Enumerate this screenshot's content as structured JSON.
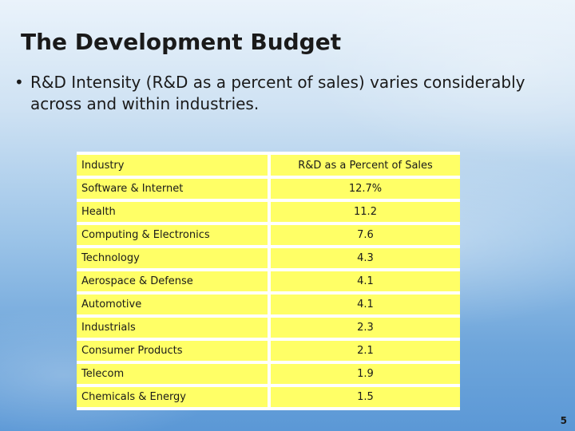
{
  "slide": {
    "title": "The Development Budget",
    "bullet": "R&D Intensity  (R&D as a percent of sales) varies considerably across and within industries.",
    "bullet_symbol": "•",
    "number": "5"
  },
  "table": {
    "headers": [
      "Industry",
      "R&D as a Percent of Sales"
    ],
    "rows": [
      [
        "Software & Internet",
        "12.7%"
      ],
      [
        "Health",
        "11.2"
      ],
      [
        "Computing & Electronics",
        "7.6"
      ],
      [
        "Technology",
        "4.3"
      ],
      [
        "Aerospace & Defense",
        "4.1"
      ],
      [
        "Automotive",
        "4.1"
      ],
      [
        "Industrials",
        "2.3"
      ],
      [
        "Consumer Products",
        "2.1"
      ],
      [
        "Telecom",
        "1.9"
      ],
      [
        "Chemicals & Energy",
        "1.5"
      ]
    ]
  },
  "colors": {
    "cell_fill": "#ffff66",
    "text": "#1a1a1a",
    "background": "#9cc4e8"
  }
}
